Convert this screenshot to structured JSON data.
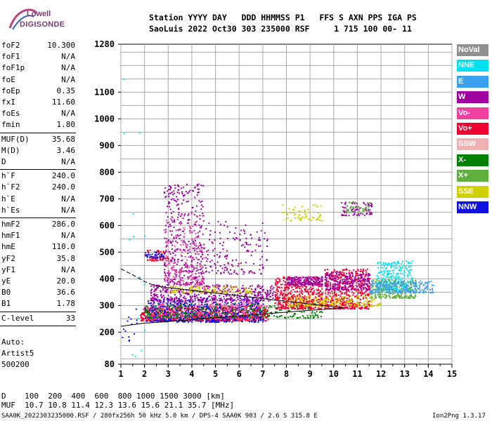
{
  "logo": {
    "line1": "Lowell",
    "line2": "DIGISONDE"
  },
  "header": {
    "line1": "Station YYYY DAY   DDD HHMMSS P1   FFS S AXN PPS IGA PS",
    "line2": "SaoLuis 2022 Oct30 303 235000 RSF     1 715 100 00- 11"
  },
  "scaled_parameters": {
    "group1": [
      {
        "k": "foF2",
        "v": "10.300"
      },
      {
        "k": "foF1",
        "v": "N/A"
      },
      {
        "k": "foF1p",
        "v": "N/A"
      },
      {
        "k": "foE",
        "v": "N/A"
      },
      {
        "k": "foEp",
        "v": "0.35"
      },
      {
        "k": "fxI",
        "v": "11.60"
      },
      {
        "k": "foEs",
        "v": "N/A"
      },
      {
        "k": "fmin",
        "v": "1.80"
      }
    ],
    "group2": [
      {
        "k": "MUF(D)",
        "v": "35.68"
      },
      {
        "k": "M(D)",
        "v": "3.46"
      },
      {
        "k": "D",
        "v": "N/A"
      }
    ],
    "group3": [
      {
        "k": "h`F",
        "v": "240.0"
      },
      {
        "k": "h`F2",
        "v": "240.0"
      },
      {
        "k": "h`E",
        "v": "N/A"
      },
      {
        "k": "h`Es",
        "v": "N/A"
      }
    ],
    "group4": [
      {
        "k": "hmF2",
        "v": "286.0"
      },
      {
        "k": "hmF1",
        "v": "N/A"
      },
      {
        "k": "hmE",
        "v": "110.0"
      },
      {
        "k": "yF2",
        "v": "35.8"
      },
      {
        "k": "yF1",
        "v": "N/A"
      },
      {
        "k": "yE",
        "v": "20.0"
      },
      {
        "k": "B0",
        "v": "36.6"
      },
      {
        "k": "B1",
        "v": "1.78"
      }
    ],
    "clevel": {
      "k": "C-level",
      "v": "33"
    }
  },
  "auto": {
    "line1": "Auto:",
    "line2": "Artist5",
    "line3": "500200"
  },
  "legend": [
    {
      "label": "NoVal",
      "color": "#909090"
    },
    {
      "label": "NNE",
      "color": "#00e0f0"
    },
    {
      "label": "E",
      "color": "#3aa0f0"
    },
    {
      "label": "W",
      "color": "#a000a0"
    },
    {
      "label": "Vo-",
      "color": "#f040a0"
    },
    {
      "label": "Vo+",
      "color": "#f00030"
    },
    {
      "label": "SSW",
      "color": "#f0b0b0"
    },
    {
      "label": "X-",
      "color": "#008000"
    },
    {
      "label": "X+",
      "color": "#60b040"
    },
    {
      "label": "SSE",
      "color": "#d0d000"
    },
    {
      "label": "NNW",
      "color": "#1010e0"
    }
  ],
  "muf_table": {
    "d_row": "D    100  200  400  600  800 1000 1500 3000 [km]",
    "muf_row": "MUF  10.7 10.8 11.4 12.3 13.6 15.6 21.1 35.7 [MHz]"
  },
  "footer": {
    "left": "SAA0K_2022303235000.RSF / 280fx256h 50 kHz 5.0 km / DPS-4 SAA0K 903 / 2.6 S 315.8 E",
    "right": "Ion2Png 1.3.17"
  },
  "chart_data": {
    "type": "scatter",
    "xlim": [
      1,
      15
    ],
    "ylim": [
      80,
      1280
    ],
    "x_ticks": [
      1,
      2,
      3,
      4,
      5,
      6,
      7,
      8,
      9,
      10,
      11,
      12,
      13,
      14,
      15
    ],
    "y_ticks": [
      80,
      200,
      300,
      400,
      500,
      600,
      700,
      800,
      900,
      1000,
      1100,
      1280
    ],
    "grid": true,
    "profile_trace": [
      [
        1.0,
        222
      ],
      [
        2,
        234
      ],
      [
        3,
        240
      ],
      [
        4,
        247
      ],
      [
        5,
        254
      ],
      [
        6,
        261
      ],
      [
        7,
        268
      ],
      [
        8,
        275
      ],
      [
        9,
        282
      ],
      [
        10,
        288
      ],
      [
        10.4,
        291
      ]
    ],
    "profile_upper": [
      [
        1.0,
        438
      ],
      [
        1.5,
        415
      ],
      [
        2.0,
        390
      ],
      [
        2.5,
        372
      ]
    ],
    "profile_return": [
      [
        2.5,
        372
      ],
      [
        10.4,
        291
      ]
    ],
    "echo_clusters": [
      {
        "color": "#f00030",
        "x": [
          1.8,
          7.2
        ],
        "y": [
          245,
          300
        ],
        "n": 900
      },
      {
        "color": "#f040a0",
        "x": [
          2.2,
          7.0
        ],
        "y": [
          250,
          320
        ],
        "n": 500
      },
      {
        "color": "#1010e0",
        "x": [
          2.0,
          7.0
        ],
        "y": [
          240,
          330
        ],
        "n": 500
      },
      {
        "color": "#008000",
        "x": [
          2.0,
          9.5
        ],
        "y": [
          255,
          310
        ],
        "n": 300
      },
      {
        "color": "#a000a0",
        "x": [
          2.2,
          7.5
        ],
        "y": [
          320,
          380
        ],
        "n": 450
      },
      {
        "color": "#d0d000",
        "x": [
          3.0,
          6.5
        ],
        "y": [
          350,
          375
        ],
        "n": 120
      },
      {
        "color": "#a000a0",
        "x": [
          2.8,
          4.5
        ],
        "y": [
          380,
          760
        ],
        "n": 400
      },
      {
        "color": "#a000a0",
        "x": [
          4.5,
          7.2
        ],
        "y": [
          420,
          620
        ],
        "n": 160
      },
      {
        "color": "#f040a0",
        "x": [
          2.8,
          4.5
        ],
        "y": [
          380,
          650
        ],
        "n": 160
      },
      {
        "color": "#f00030",
        "x": [
          7.5,
          9.5
        ],
        "y": [
          290,
          410
        ],
        "n": 500
      },
      {
        "color": "#a000a0",
        "x": [
          8.0,
          9.5
        ],
        "y": [
          380,
          410
        ],
        "n": 200
      },
      {
        "color": "#f00030",
        "x": [
          9.6,
          11.5
        ],
        "y": [
          290,
          440
        ],
        "n": 500
      },
      {
        "color": "#a000a0",
        "x": [
          9.6,
          11.5
        ],
        "y": [
          360,
          430
        ],
        "n": 250
      },
      {
        "color": "#d0d000",
        "x": [
          8.0,
          12.0
        ],
        "y": [
          300,
          340
        ],
        "n": 200
      },
      {
        "color": "#00e0f0",
        "x": [
          11.8,
          13.3
        ],
        "y": [
          360,
          470
        ],
        "n": 250
      },
      {
        "color": "#60b040",
        "x": [
          11.5,
          13.5
        ],
        "y": [
          330,
          400
        ],
        "n": 250
      },
      {
        "color": "#3aa0f0",
        "x": [
          11.5,
          14.2
        ],
        "y": [
          350,
          395
        ],
        "n": 250
      },
      {
        "color": "#f00030",
        "x": [
          2.0,
          3.0
        ],
        "y": [
          470,
          510
        ],
        "n": 60
      },
      {
        "color": "#1010e0",
        "x": [
          2.0,
          2.8
        ],
        "y": [
          480,
          505
        ],
        "n": 40
      },
      {
        "color": "#d0d000",
        "x": [
          7.8,
          9.5
        ],
        "y": [
          620,
          680
        ],
        "n": 60
      },
      {
        "color": "#a000a0",
        "x": [
          10.3,
          11.6
        ],
        "y": [
          640,
          690
        ],
        "n": 80
      },
      {
        "color": "#60b040",
        "x": [
          10.5,
          11.5
        ],
        "y": [
          650,
          690
        ],
        "n": 40
      },
      {
        "color": "#00e0f0",
        "x": [
          1.0,
          2.0
        ],
        "y": [
          90,
          1230
        ],
        "n": 14
      },
      {
        "color": "#1010e0",
        "x": [
          1.0,
          1.8
        ],
        "y": [
          150,
          320
        ],
        "n": 14
      }
    ]
  }
}
